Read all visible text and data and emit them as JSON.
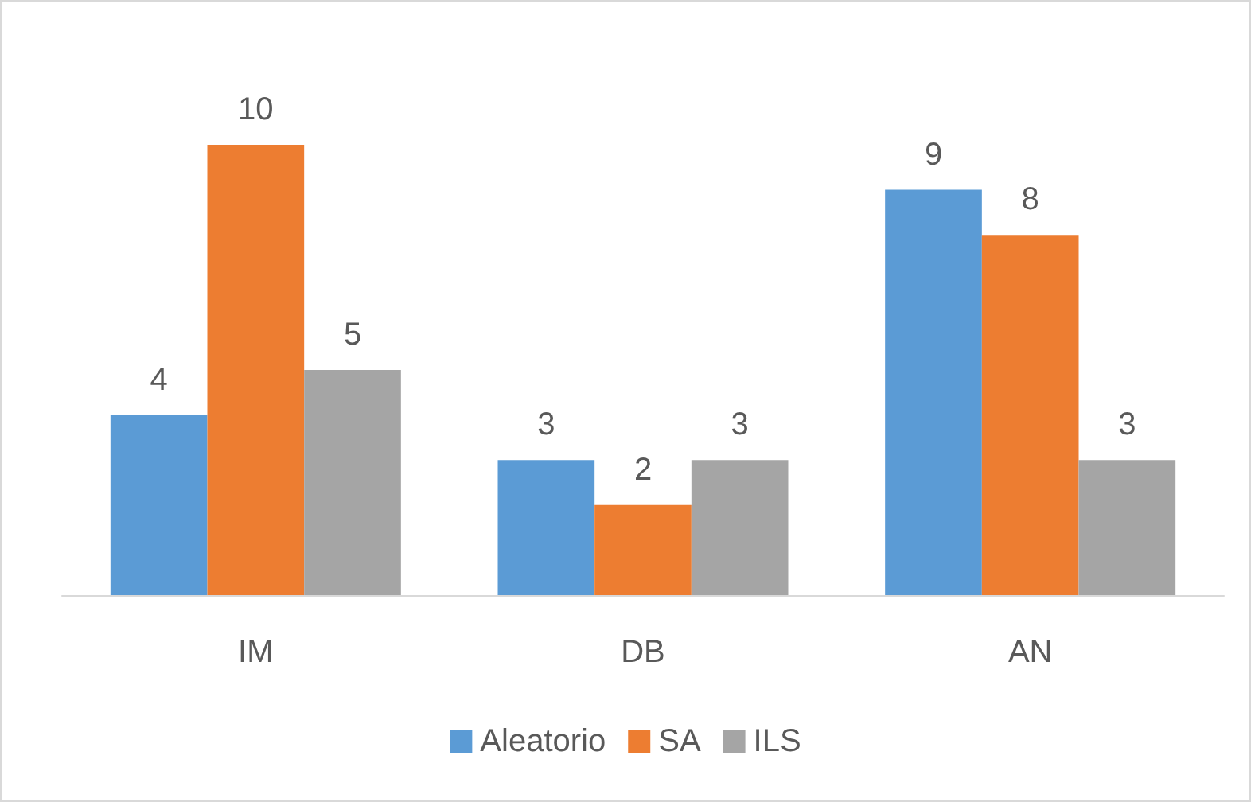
{
  "chart_data": {
    "type": "bar",
    "categories": [
      "IM",
      "DB",
      "AN"
    ],
    "series": [
      {
        "name": "Aleatorio",
        "color": "#5b9bd5",
        "values": [
          4,
          3,
          9
        ]
      },
      {
        "name": "SA",
        "color": "#ed7d31",
        "values": [
          10,
          2,
          8
        ]
      },
      {
        "name": "ILS",
        "color": "#a5a5a5",
        "values": [
          5,
          3,
          3
        ]
      }
    ],
    "data_labels": true,
    "legend": "bottom"
  }
}
